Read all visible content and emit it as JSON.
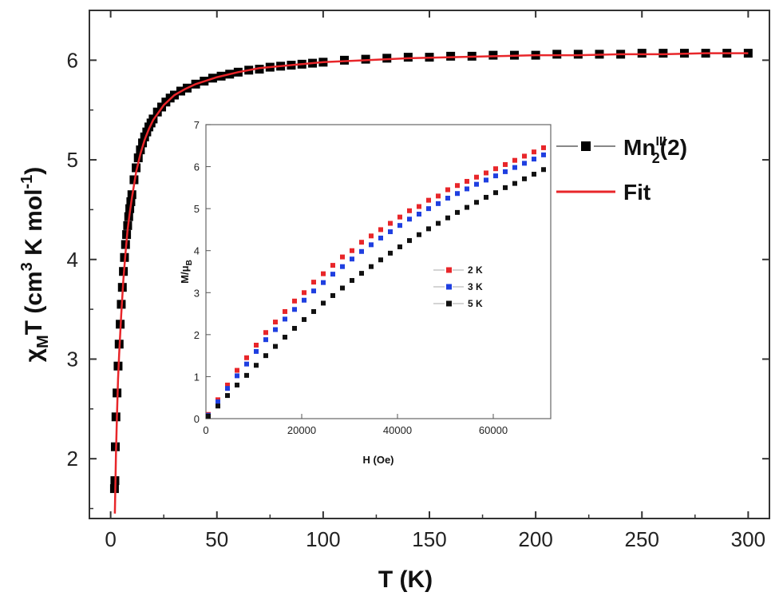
{
  "chart_data": [
    {
      "type": "scatter",
      "xlabel": "T (K)",
      "ylabel_parts": {
        "chi": "χ",
        "sub_m": "M",
        "t": "T (cm",
        "sup3": "3",
        "k": " K mol",
        "supneg1": "-1",
        "close": ")"
      },
      "xlim": [
        -10,
        310
      ],
      "ylim": [
        1.4,
        6.5
      ],
      "x_ticks": [
        0,
        50,
        100,
        150,
        200,
        250,
        300
      ],
      "y_ticks": [
        2,
        3,
        4,
        5,
        6
      ],
      "grid": false,
      "legend_position": "top-right",
      "series": [
        {
          "name_parts": {
            "base": "Mn",
            "sup": "III",
            "sub": "2",
            "tail": "(2)"
          },
          "color": "#000000",
          "marker": "square",
          "x": [
            1.8,
            2.0,
            2.2,
            2.5,
            3,
            3.5,
            4,
            4.5,
            5,
            5.5,
            6,
            6.5,
            7,
            7.5,
            8,
            8.5,
            9,
            9.5,
            10,
            11,
            12,
            13,
            14,
            15,
            16,
            17,
            18,
            19,
            20,
            22,
            24,
            26,
            28,
            30,
            33,
            36,
            40,
            44,
            48,
            52,
            56,
            60,
            65,
            70,
            75,
            80,
            85,
            90,
            95,
            100,
            110,
            120,
            130,
            140,
            150,
            160,
            170,
            180,
            190,
            200,
            210,
            220,
            230,
            240,
            250,
            260,
            270,
            280,
            290,
            300
          ],
          "y": [
            1.7,
            1.78,
            2.12,
            2.42,
            2.66,
            2.93,
            3.15,
            3.35,
            3.55,
            3.72,
            3.88,
            4.02,
            4.15,
            4.25,
            4.34,
            4.43,
            4.51,
            4.58,
            4.65,
            4.8,
            4.92,
            5.02,
            5.1,
            5.17,
            5.23,
            5.28,
            5.33,
            5.37,
            5.41,
            5.48,
            5.53,
            5.58,
            5.62,
            5.65,
            5.69,
            5.72,
            5.76,
            5.79,
            5.82,
            5.84,
            5.86,
            5.88,
            5.9,
            5.91,
            5.93,
            5.94,
            5.95,
            5.96,
            5.97,
            5.98,
            6.0,
            6.01,
            6.02,
            6.03,
            6.03,
            6.04,
            6.04,
            6.05,
            6.05,
            6.05,
            6.06,
            6.06,
            6.06,
            6.06,
            6.07,
            6.07,
            6.07,
            6.07,
            6.07,
            6.07
          ]
        },
        {
          "name": "Fit",
          "color": "#e8262a",
          "type": "line",
          "x": [
            2,
            2.5,
            3,
            3.5,
            4,
            5,
            6,
            7,
            8,
            9,
            10,
            12,
            14,
            16,
            18,
            20,
            25,
            30,
            35,
            40,
            50,
            60,
            70,
            80,
            90,
            100,
            120,
            140,
            160,
            180,
            200,
            220,
            240,
            260,
            280,
            300
          ],
          "y": [
            1.45,
            2.05,
            2.45,
            2.8,
            3.05,
            3.45,
            3.8,
            4.07,
            4.3,
            4.47,
            4.62,
            4.88,
            5.06,
            5.2,
            5.31,
            5.4,
            5.55,
            5.65,
            5.71,
            5.76,
            5.83,
            5.88,
            5.92,
            5.94,
            5.96,
            5.98,
            6.0,
            6.02,
            6.03,
            6.04,
            6.05,
            6.05,
            6.06,
            6.06,
            6.07,
            6.07
          ]
        }
      ]
    },
    {
      "type": "scatter",
      "xlabel": "H (Oe)",
      "ylabel_parts": {
        "m": "M/μ",
        "sub": "B"
      },
      "xlim": [
        0,
        72000
      ],
      "ylim": [
        0,
        7
      ],
      "x_ticks": [
        0,
        20000,
        40000,
        60000
      ],
      "y_ticks": [
        0,
        1,
        2,
        3,
        4,
        5,
        6,
        7
      ],
      "grid": false,
      "legend_position": "center-right",
      "series": [
        {
          "name": "2 K",
          "color": "#e8262a",
          "marker": "square",
          "x": [
            500,
            2500,
            4500,
            6500,
            8500,
            10500,
            12500,
            14500,
            16500,
            18500,
            20500,
            22500,
            24500,
            26500,
            28500,
            30500,
            32500,
            34500,
            36500,
            38500,
            40500,
            42500,
            44500,
            46500,
            48500,
            50500,
            52500,
            54500,
            56500,
            58500,
            60500,
            62500,
            64500,
            66500,
            68500,
            70500
          ],
          "y": [
            0.1,
            0.45,
            0.8,
            1.15,
            1.45,
            1.75,
            2.05,
            2.3,
            2.55,
            2.8,
            3.0,
            3.25,
            3.45,
            3.65,
            3.85,
            4.0,
            4.2,
            4.35,
            4.5,
            4.65,
            4.8,
            4.95,
            5.05,
            5.2,
            5.3,
            5.45,
            5.55,
            5.65,
            5.75,
            5.85,
            5.95,
            6.05,
            6.15,
            6.25,
            6.35,
            6.45
          ]
        },
        {
          "name": "3 K",
          "color": "#1f3fe0",
          "marker": "square",
          "x": [
            500,
            2500,
            4500,
            6500,
            8500,
            10500,
            12500,
            14500,
            16500,
            18500,
            20500,
            22500,
            24500,
            26500,
            28500,
            30500,
            32500,
            34500,
            36500,
            38500,
            40500,
            42500,
            44500,
            46500,
            48500,
            50500,
            52500,
            54500,
            56500,
            58500,
            60500,
            62500,
            64500,
            66500,
            68500,
            70500
          ],
          "y": [
            0.08,
            0.4,
            0.72,
            1.02,
            1.3,
            1.6,
            1.88,
            2.12,
            2.37,
            2.6,
            2.82,
            3.04,
            3.24,
            3.44,
            3.62,
            3.8,
            3.98,
            4.14,
            4.3,
            4.45,
            4.6,
            4.75,
            4.87,
            5.0,
            5.12,
            5.25,
            5.36,
            5.47,
            5.58,
            5.68,
            5.78,
            5.88,
            5.98,
            6.08,
            6.18,
            6.28
          ]
        },
        {
          "name": "5 K",
          "color": "#111111",
          "marker": "square",
          "x": [
            500,
            2500,
            4500,
            6500,
            8500,
            10500,
            12500,
            14500,
            16500,
            18500,
            20500,
            22500,
            24500,
            26500,
            28500,
            30500,
            32500,
            34500,
            36500,
            38500,
            40500,
            42500,
            44500,
            46500,
            48500,
            50500,
            52500,
            54500,
            56500,
            58500,
            60500,
            62500,
            64500,
            66500,
            68500,
            70500
          ],
          "y": [
            0.06,
            0.3,
            0.55,
            0.8,
            1.03,
            1.27,
            1.5,
            1.72,
            1.94,
            2.15,
            2.36,
            2.55,
            2.75,
            2.93,
            3.11,
            3.29,
            3.46,
            3.62,
            3.78,
            3.94,
            4.09,
            4.24,
            4.38,
            4.52,
            4.65,
            4.78,
            4.91,
            5.03,
            5.15,
            5.27,
            5.38,
            5.5,
            5.6,
            5.71,
            5.82,
            5.93
          ]
        }
      ]
    }
  ]
}
